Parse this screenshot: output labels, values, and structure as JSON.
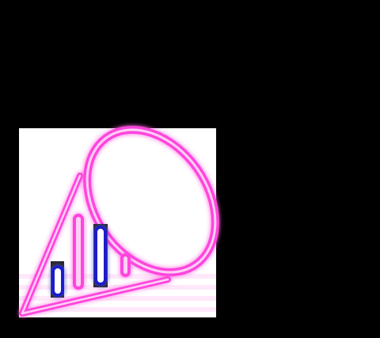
{
  "colors": {
    "background": "#000000",
    "panel": "#ffffff",
    "neon_pink": "#ff44dd",
    "neon_pink_core": "#ffd0f6",
    "neon_blue": "#1a1acc",
    "neon_blue_core": "#ffffff",
    "shadow": "#2a2a2a"
  },
  "icons": {
    "megaphone": "neon-megaphone-icon",
    "bars": "neon-bar-chart-icon"
  }
}
